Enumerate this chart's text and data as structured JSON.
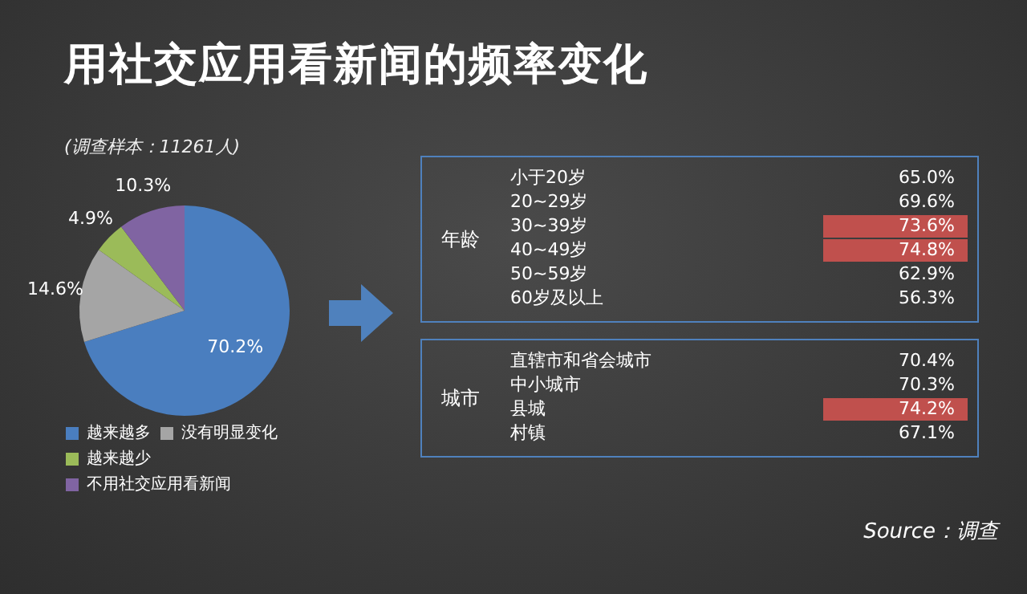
{
  "chart_data": [
    {
      "type": "pie",
      "title": "用社交应用看新闻的频率变化",
      "subtitle": "(调查样本：11261人)",
      "categories": [
        "越来越多",
        "没有明显变化",
        "越来越少",
        "不用社交应用看新闻"
      ],
      "values": [
        70.2,
        14.6,
        4.9,
        10.3
      ],
      "value_labels": [
        "70.2%",
        "14.6%",
        "4.9%",
        "10.3%"
      ],
      "colors": [
        "#4a7ebf",
        "#a5a5a5",
        "#9bbb59",
        "#8064a2"
      ],
      "legend": "bottom",
      "annotations": [
        "Source：调查"
      ]
    },
    {
      "type": "other",
      "title": "年龄",
      "categories": [
        "小于20岁",
        "20~29岁",
        "30~39岁",
        "40~49岁",
        "50~59岁",
        "60岁及以上"
      ],
      "values": [
        65.0,
        69.6,
        73.6,
        74.8,
        62.9,
        56.3
      ],
      "value_labels": [
        "65.0%",
        "69.6%",
        "73.6%",
        "74.8%",
        "62.9%",
        "56.3%"
      ],
      "colors": [
        null,
        null,
        "#c0504d",
        "#c0504d",
        null,
        null
      ]
    },
    {
      "type": "other",
      "title": "城市",
      "categories": [
        "直辖市和省会城市",
        "中小城市",
        "县城",
        "村镇"
      ],
      "values": [
        70.4,
        70.3,
        74.2,
        67.1
      ],
      "value_labels": [
        "70.4%",
        "70.3%",
        "74.2%",
        "67.1%"
      ],
      "colors": [
        null,
        null,
        "#c0504d",
        null
      ]
    }
  ]
}
